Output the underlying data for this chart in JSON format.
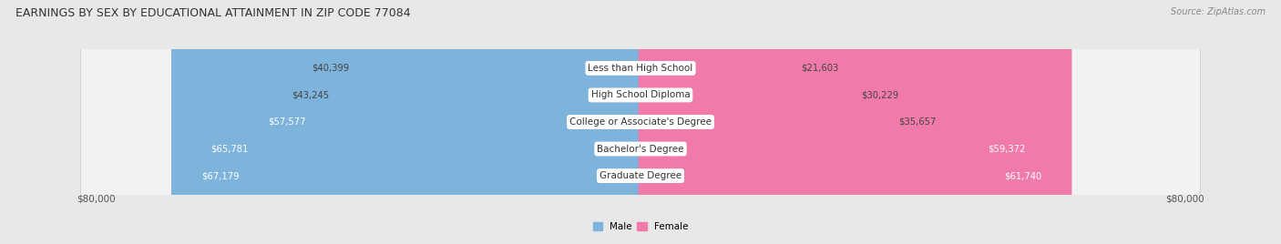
{
  "title": "EARNINGS BY SEX BY EDUCATIONAL ATTAINMENT IN ZIP CODE 77084",
  "source": "Source: ZipAtlas.com",
  "categories": [
    "Less than High School",
    "High School Diploma",
    "College or Associate's Degree",
    "Bachelor's Degree",
    "Graduate Degree"
  ],
  "male_values": [
    40399,
    43245,
    57577,
    65781,
    67179
  ],
  "female_values": [
    21603,
    30229,
    35657,
    59372,
    61740
  ],
  "male_color": "#7EB3DC",
  "female_color": "#F07BAA",
  "male_label": "Male",
  "female_label": "Female",
  "max_value": 80000,
  "background_color": "#e8e8e8",
  "row_bg_color": "#f2f2f2",
  "title_fontsize": 9.0,
  "label_fontsize": 7.5,
  "value_fontsize": 7.2,
  "category_fontsize": 7.5
}
